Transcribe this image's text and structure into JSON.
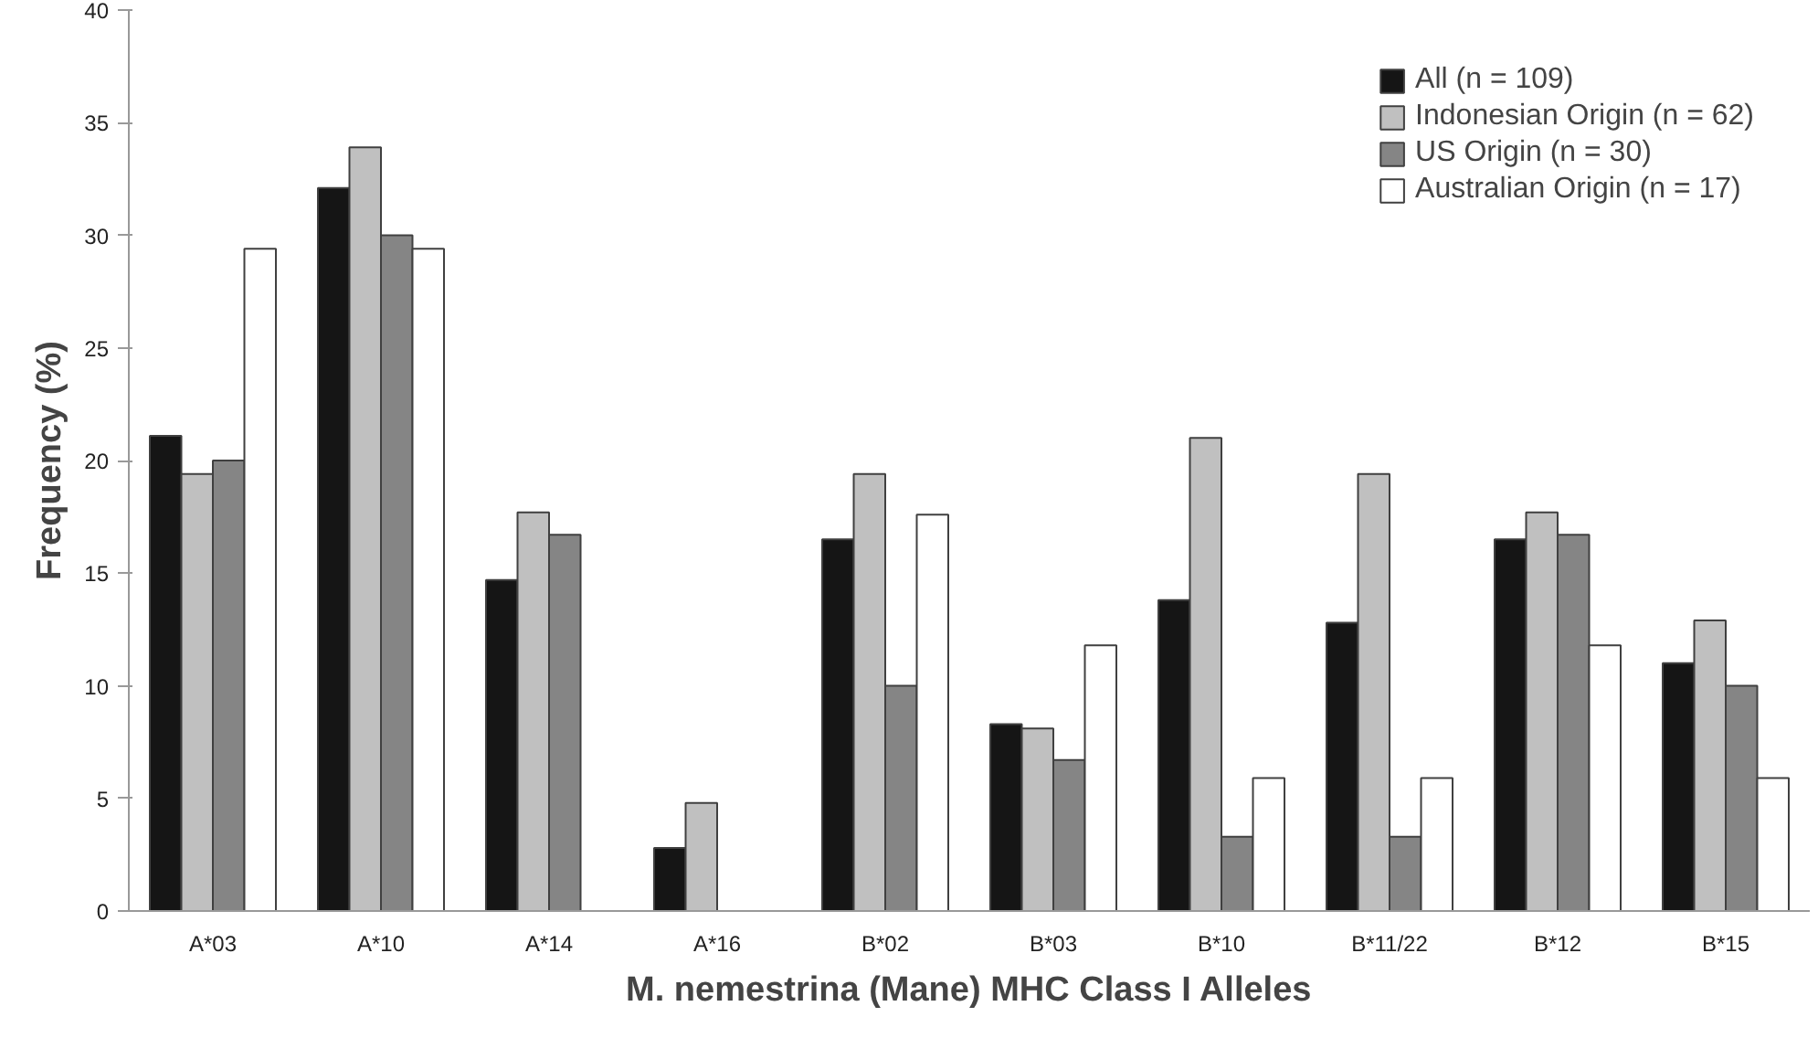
{
  "chart_data": {
    "type": "bar",
    "xlabel": "M. nemestrina (Mane) MHC Class I Alleles",
    "ylabel": "Frequency (%)",
    "categories": [
      "A*03",
      "A*10",
      "A*14",
      "A*16",
      "B*02",
      "B*03",
      "B*10",
      "B*11/22",
      "B*12",
      "B*15"
    ],
    "series": [
      {
        "name": "All (n = 109)",
        "color": "#151515",
        "values": [
          21.1,
          32.1,
          14.7,
          2.8,
          16.5,
          8.3,
          13.8,
          12.8,
          16.5,
          11.0
        ]
      },
      {
        "name": "Indonesian Origin (n = 62)",
        "color": "#c0c0c0",
        "values": [
          19.4,
          33.9,
          17.7,
          4.8,
          19.4,
          8.1,
          21.0,
          19.4,
          17.7,
          12.9
        ]
      },
      {
        "name": "US Origin (n = 30)",
        "color": "#858585",
        "values": [
          20.0,
          30.0,
          16.7,
          0,
          10.0,
          6.7,
          3.3,
          3.3,
          16.7,
          10.0
        ]
      },
      {
        "name": "Australian Origin (n = 17)",
        "color": "#ffffff",
        "values": [
          29.4,
          29.4,
          0,
          0,
          17.6,
          11.8,
          5.9,
          5.9,
          11.8,
          5.9
        ]
      }
    ],
    "ylim": [
      0,
      40
    ],
    "yticks": [
      0,
      5,
      10,
      15,
      20,
      25,
      30,
      35,
      40
    ],
    "grid": false,
    "legend": "top right"
  }
}
